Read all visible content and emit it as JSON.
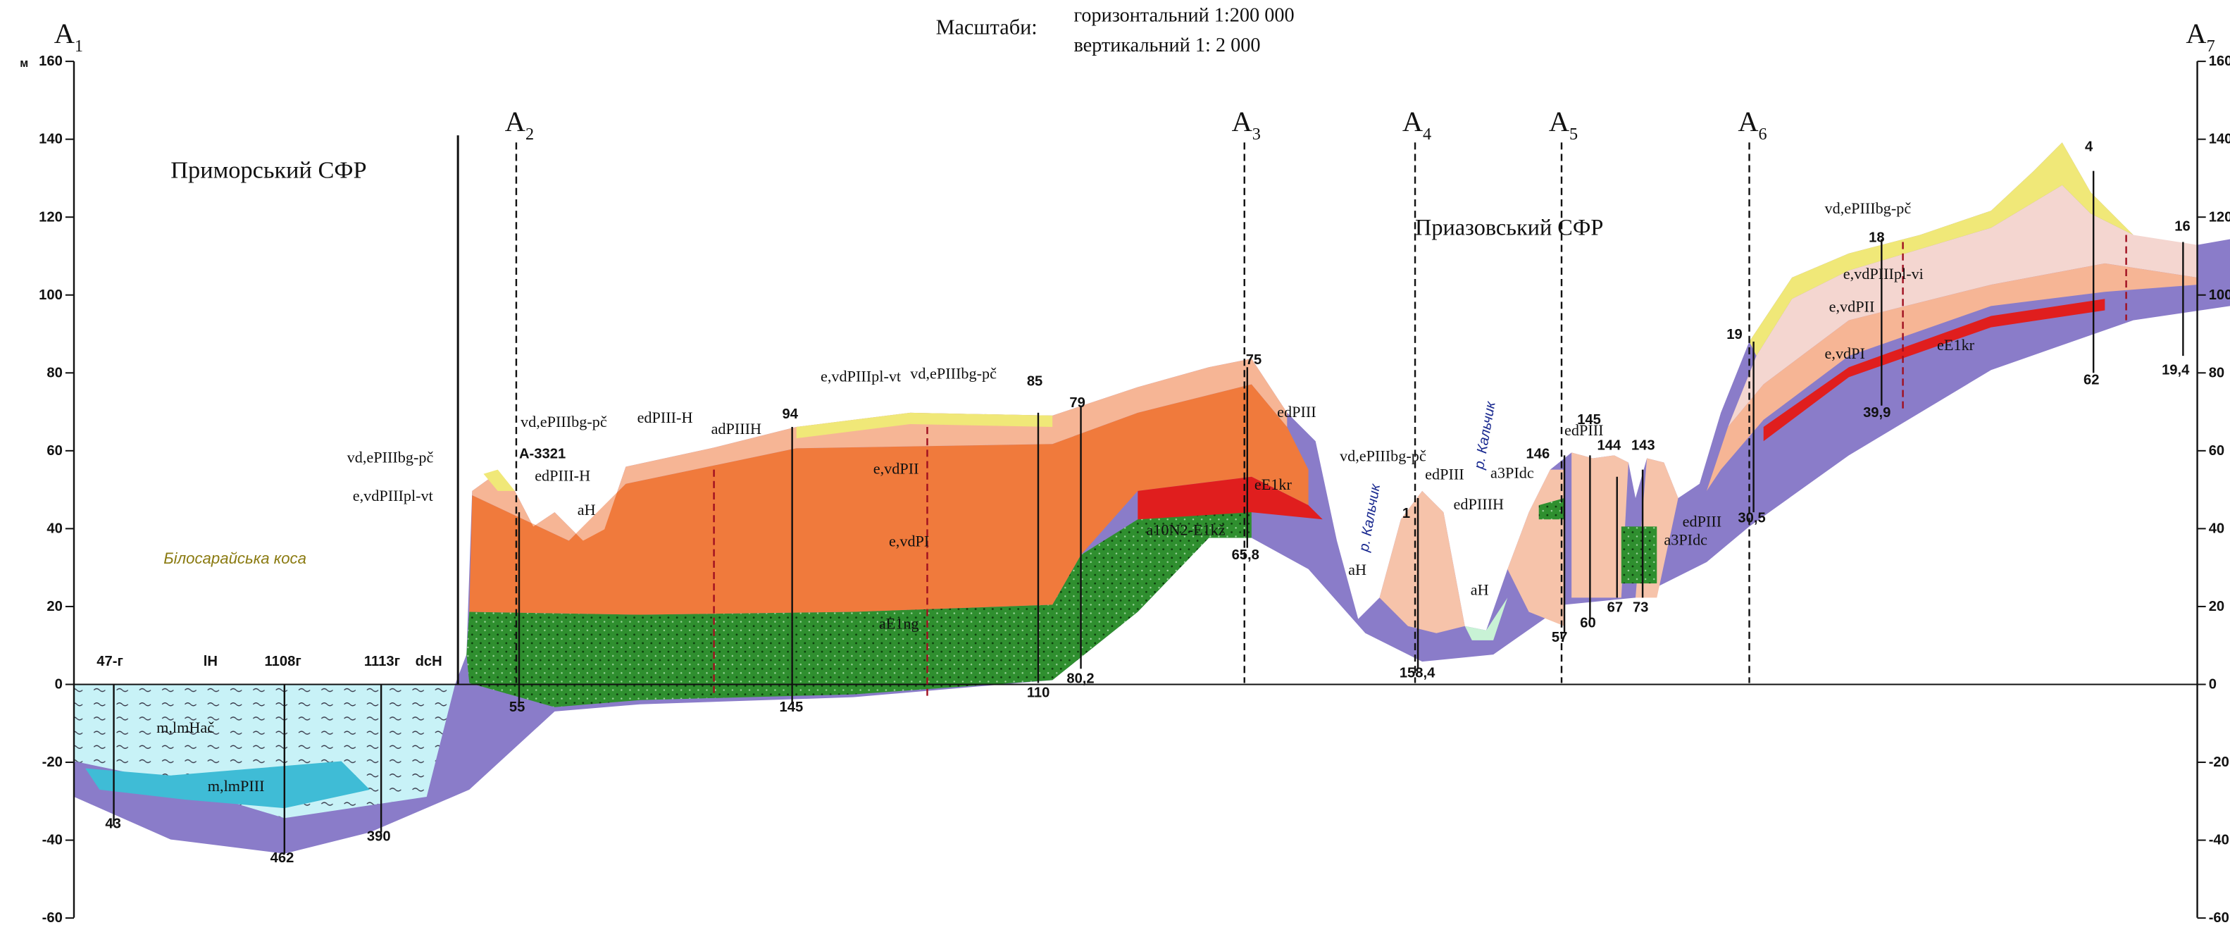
{
  "header": {
    "scale_label": "Масштаби:",
    "horizontal": "горизонтальний 1:200 000",
    "vertical": "вертикальний 1: 2 000"
  },
  "axis": {
    "unit": "м",
    "ticks": [
      160,
      140,
      120,
      100,
      80,
      60,
      40,
      20,
      0,
      -20,
      -40,
      -60
    ]
  },
  "section_points": [
    {
      "letter": "A",
      "index": "1"
    },
    {
      "letter": "A",
      "index": "2"
    },
    {
      "letter": "A",
      "index": "3"
    },
    {
      "letter": "A",
      "index": "4"
    },
    {
      "letter": "A",
      "index": "5"
    },
    {
      "letter": "A",
      "index": "6"
    },
    {
      "letter": "A",
      "index": "7"
    }
  ],
  "regions": [
    "Приморський СФР",
    "Приазовський СФР",
    "Білосарайська коса"
  ],
  "rivers": [
    "р. Кальчик",
    "р. Кальчик"
  ],
  "boreholes": [
    "47-г",
    "lH",
    "1108г",
    "1113г",
    "dcH",
    "55",
    "43",
    "462",
    "390",
    "145",
    "110",
    "80,2",
    "65,8",
    "158,4",
    "57",
    "60",
    "67",
    "73",
    "30,5",
    "62",
    "19,4",
    "39,9",
    "A-3321",
    "94",
    "85",
    "79",
    "75",
    "146",
    "145",
    "144",
    "143",
    "19",
    "18",
    "4",
    "16",
    "1"
  ],
  "units": [
    "vd,ePIIIbg-pč",
    "e,vdPIIIpl-vt",
    "vd,ePIIIbg-pč",
    "edPIII-H",
    "edPIII-H",
    "adPIIIH",
    "e,vdPIIIpl-vt",
    "vd,ePIIIbg-pč",
    "e,vdPII",
    "e,vdPI",
    "aE1ng",
    "a10N2-E1kž",
    "eE1kr",
    "edPIII",
    "vd,ePIIIbg-pč",
    "edPIII",
    "edPIIIH",
    "aH",
    "aH",
    "aH",
    "a3PIdc",
    "edPIII",
    "edPIII",
    "a3PIdc",
    "m,lmHač",
    "m,lmPIII",
    "vd,ePIIIbg-pč",
    "e,vdPIIIpl-vi",
    "e,vdPII",
    "e,vdPI",
    "eE1kr"
  ]
}
